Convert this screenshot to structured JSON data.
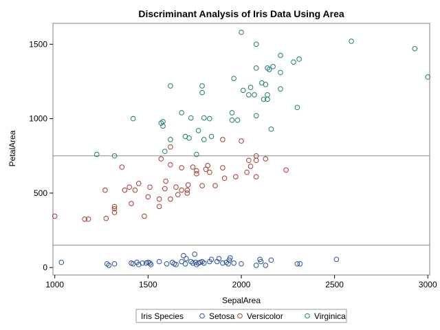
{
  "chart_data": {
    "type": "scatter",
    "title": "Discriminant Analysis of Iris Data Using Area",
    "xlabel": "SepalArea",
    "ylabel": "PetalArea",
    "xlim": [
      990,
      3010
    ],
    "ylim": [
      -50,
      1640
    ],
    "xticks": [
      1000,
      1500,
      2000,
      2500,
      3000
    ],
    "yticks": [
      0,
      500,
      1000,
      1500
    ],
    "xtick_labels": [
      "1000",
      "1500",
      "2000",
      "2500",
      "3000"
    ],
    "ytick_labels": [
      "0",
      "500",
      "1000",
      "1500"
    ],
    "reference_lines_y": [
      150,
      750
    ],
    "legend": {
      "title": "Iris Species",
      "position": "bottom"
    },
    "series": [
      {
        "name": "Setosa",
        "color": "#2B4E9B",
        "points": [
          [
            1035,
            35
          ],
          [
            1280,
            25
          ],
          [
            1290,
            15
          ],
          [
            1320,
            25
          ],
          [
            1410,
            30
          ],
          [
            1420,
            25
          ],
          [
            1440,
            35
          ],
          [
            1450,
            20
          ],
          [
            1470,
            30
          ],
          [
            1490,
            30
          ],
          [
            1500,
            35
          ],
          [
            1510,
            30
          ],
          [
            1515,
            20
          ],
          [
            1560,
            40
          ],
          [
            1600,
            25
          ],
          [
            1630,
            35
          ],
          [
            1640,
            25
          ],
          [
            1650,
            20
          ],
          [
            1680,
            40
          ],
          [
            1690,
            80
          ],
          [
            1700,
            25
          ],
          [
            1705,
            60
          ],
          [
            1730,
            40
          ],
          [
            1750,
            90
          ],
          [
            1755,
            35
          ],
          [
            1760,
            20
          ],
          [
            1770,
            30
          ],
          [
            1780,
            35
          ],
          [
            1790,
            40
          ],
          [
            1800,
            30
          ],
          [
            1830,
            40
          ],
          [
            1840,
            55
          ],
          [
            1870,
            40
          ],
          [
            1880,
            60
          ],
          [
            1900,
            30
          ],
          [
            1920,
            35
          ],
          [
            1935,
            50
          ],
          [
            1940,
            65
          ],
          [
            1960,
            30
          ],
          [
            2000,
            25
          ],
          [
            2080,
            15
          ],
          [
            2100,
            55
          ],
          [
            2105,
            40
          ],
          [
            2130,
            15
          ],
          [
            2160,
            50
          ],
          [
            2300,
            25
          ],
          [
            2315,
            25
          ],
          [
            2510,
            55
          ],
          [
            1740,
            30
          ],
          [
            1930,
            25
          ]
        ]
      },
      {
        "name": "Versicolor",
        "color": "#A23A2E",
        "points": [
          [
            1000,
            345
          ],
          [
            1160,
            325
          ],
          [
            1180,
            325
          ],
          [
            1270,
            520
          ],
          [
            1275,
            330
          ],
          [
            1320,
            395
          ],
          [
            1320,
            370
          ],
          [
            1320,
            410
          ],
          [
            1360,
            675
          ],
          [
            1375,
            520
          ],
          [
            1400,
            540
          ],
          [
            1410,
            430
          ],
          [
            1430,
            520
          ],
          [
            1450,
            565
          ],
          [
            1480,
            345
          ],
          [
            1500,
            475
          ],
          [
            1510,
            540
          ],
          [
            1560,
            460
          ],
          [
            1560,
            410
          ],
          [
            1570,
            730
          ],
          [
            1590,
            530
          ],
          [
            1595,
            580
          ],
          [
            1620,
            690
          ],
          [
            1620,
            460
          ],
          [
            1620,
            810
          ],
          [
            1650,
            540
          ],
          [
            1660,
            490
          ],
          [
            1680,
            670
          ],
          [
            1680,
            520
          ],
          [
            1710,
            520
          ],
          [
            1710,
            500
          ],
          [
            1715,
            555
          ],
          [
            1740,
            675
          ],
          [
            1760,
            650
          ],
          [
            1760,
            630
          ],
          [
            1790,
            550
          ],
          [
            1810,
            660
          ],
          [
            1820,
            685
          ],
          [
            1830,
            640
          ],
          [
            1860,
            550
          ],
          [
            1900,
            860
          ],
          [
            1900,
            670
          ],
          [
            1910,
            600
          ],
          [
            1970,
            610
          ],
          [
            2000,
            850
          ],
          [
            2030,
            640
          ],
          [
            2040,
            720
          ],
          [
            2050,
            680
          ],
          [
            2080,
            720
          ],
          [
            2080,
            750
          ],
          [
            2080,
            610
          ],
          [
            2130,
            730
          ],
          [
            2240,
            655
          ]
        ]
      },
      {
        "name": "Virginica",
        "color": "#1F7B73",
        "points": [
          [
            1225,
            760
          ],
          [
            1320,
            750
          ],
          [
            1420,
            1000
          ],
          [
            1570,
            970
          ],
          [
            1580,
            950
          ],
          [
            1580,
            980
          ],
          [
            1590,
            780
          ],
          [
            1620,
            1220
          ],
          [
            1620,
            860
          ],
          [
            1680,
            1040
          ],
          [
            1700,
            880
          ],
          [
            1720,
            870
          ],
          [
            1730,
            1005
          ],
          [
            1760,
            760
          ],
          [
            1770,
            920
          ],
          [
            1790,
            1220
          ],
          [
            1790,
            1175
          ],
          [
            1800,
            1005
          ],
          [
            1800,
            860
          ],
          [
            1830,
            1000
          ],
          [
            1840,
            880
          ],
          [
            1950,
            990
          ],
          [
            1950,
            1040
          ],
          [
            1960,
            1270
          ],
          [
            1980,
            990
          ],
          [
            2000,
            1580
          ],
          [
            2010,
            1190
          ],
          [
            2040,
            1160
          ],
          [
            2050,
            1210
          ],
          [
            2070,
            1160
          ],
          [
            2080,
            1500
          ],
          [
            2080,
            1340
          ],
          [
            2080,
            1020
          ],
          [
            2110,
            1240
          ],
          [
            2120,
            1130
          ],
          [
            2130,
            1230
          ],
          [
            2140,
            1340
          ],
          [
            2140,
            1130
          ],
          [
            2140,
            1160
          ],
          [
            2150,
            1330
          ],
          [
            2160,
            930
          ],
          [
            2170,
            1350
          ],
          [
            2210,
            1425
          ],
          [
            2210,
            1310
          ],
          [
            2210,
            1200
          ],
          [
            2280,
            1380
          ],
          [
            2300,
            1075
          ],
          [
            2310,
            1400
          ],
          [
            2590,
            1520
          ],
          [
            2930,
            1470
          ],
          [
            3000,
            1280
          ]
        ]
      }
    ]
  }
}
